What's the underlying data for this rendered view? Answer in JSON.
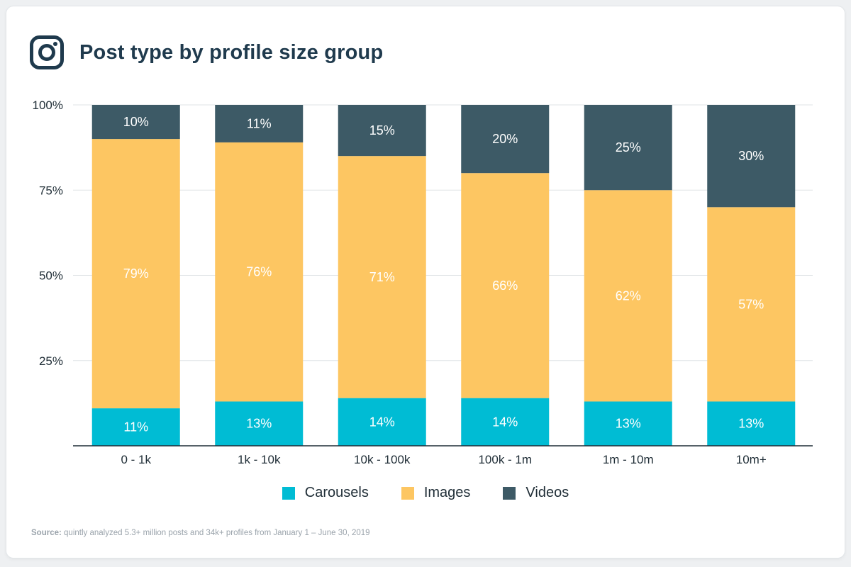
{
  "header": {
    "title": "Post type by profile size group",
    "icon": "instagram-icon"
  },
  "source": {
    "prefix": "Source:",
    "text": " quintly analyzed 5.3+ million posts and 34k+ profiles from January 1 – June 30, 2019"
  },
  "colors": {
    "carousels": "#00bcd4",
    "images": "#fdc662",
    "videos": "#3d5a66",
    "title": "#1f3a4d"
  },
  "chart_data": {
    "type": "bar",
    "stacked": true,
    "title": "Post type by profile size group",
    "xlabel": "",
    "ylabel": "",
    "ylim": [
      0,
      100
    ],
    "yticks": [
      "100%",
      "75%",
      "50%",
      "25%"
    ],
    "grid": true,
    "legend_position": "bottom",
    "categories": [
      "0 - 1k",
      "1k - 10k",
      "10k - 100k",
      "100k - 1m",
      "1m - 10m",
      "10m+"
    ],
    "series": [
      {
        "name": "Carousels",
        "color": "#00bcd4",
        "values": [
          11,
          13,
          14,
          14,
          13,
          13
        ]
      },
      {
        "name": "Images",
        "color": "#fdc662",
        "values": [
          79,
          76,
          71,
          66,
          62,
          57
        ]
      },
      {
        "name": "Videos",
        "color": "#3d5a66",
        "values": [
          10,
          11,
          15,
          20,
          25,
          30
        ]
      }
    ]
  }
}
